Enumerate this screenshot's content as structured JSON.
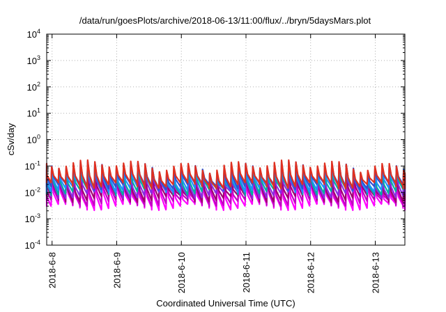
{
  "chart_data": {
    "type": "line",
    "title": "/data/run/goesPlots/archive/2018-06-13/11:00/flux/../bryn/5daysMars.plot",
    "xlabel": "Coordinated Universal Time (UTC)",
    "ylabel": "cSv/day",
    "y_scale": "log",
    "ylim": [
      0.0001,
      10000
    ],
    "y_ticks": [
      {
        "base": "10",
        "exp": "-4"
      },
      {
        "base": "10",
        "exp": "-3"
      },
      {
        "base": "10",
        "exp": "-2"
      },
      {
        "base": "10",
        "exp": "-1"
      },
      {
        "base": "10",
        "exp": "0"
      },
      {
        "base": "10",
        "exp": "1"
      },
      {
        "base": "10",
        "exp": "2"
      },
      {
        "base": "10",
        "exp": "3"
      },
      {
        "base": "10",
        "exp": "4"
      }
    ],
    "xlim": [
      "2018-06-07T22:00",
      "2018-06-13T11:00"
    ],
    "x_ticks": [
      "2018-6-8",
      "2018-6-9",
      "2018-6-10",
      "2018-6-11",
      "2018-6-12",
      "2018-6-13"
    ],
    "grid": true,
    "legend": "none",
    "pattern": {
      "spikes_per_day": 9,
      "note_visible_range": "values oscillate in sawtooth spikes between ~3e-3 and ~1.5e-1"
    },
    "series": [
      {
        "color": "#ff00ff",
        "peak": 0.022,
        "trough": 0.0032
      },
      {
        "color": "#c400c4",
        "peak": 0.03,
        "trough": 0.0045
      },
      {
        "color": "#a00070",
        "peak": 0.04,
        "trough": 0.0065
      },
      {
        "color": "#8a2be2",
        "peak": 0.055,
        "trough": 0.009
      },
      {
        "color": "#00b0a0",
        "peak": 0.07,
        "trough": 0.012
      },
      {
        "color": "#1e90ff",
        "peak": 0.085,
        "trough": 0.015
      },
      {
        "color": "#3050d0",
        "peak": 0.1,
        "trough": 0.019
      },
      {
        "color": "#e03020",
        "peak": 0.11,
        "trough": 0.021
      }
    ]
  }
}
